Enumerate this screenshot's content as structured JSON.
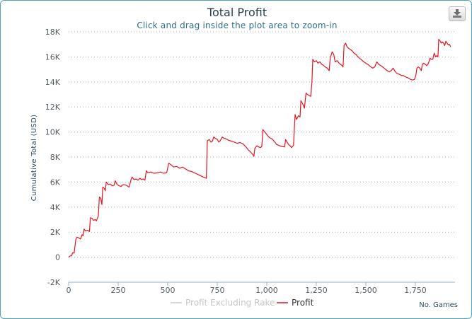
{
  "chart_data": {
    "type": "line",
    "title": "Total Profit",
    "subtitle": "Click and drag inside the plot area to zoom-in",
    "ylabel": "Cumulative Total (USD)",
    "xlabel": "No. Games",
    "xlim": [
      0,
      1950
    ],
    "ylim": [
      -2000,
      18000
    ],
    "x_ticks": [
      0,
      250,
      500,
      750,
      1000,
      1250,
      1500,
      1750
    ],
    "x_tick_labels": [
      "0",
      "250",
      "500",
      "750",
      "1,000",
      "1,250",
      "1,500",
      "1,750"
    ],
    "y_ticks": [
      -2000,
      0,
      2000,
      4000,
      6000,
      8000,
      10000,
      12000,
      14000,
      16000,
      18000
    ],
    "y_tick_labels": [
      "-2K",
      "0",
      "2K",
      "4K",
      "6K",
      "8K",
      "10K",
      "12K",
      "14K",
      "16K",
      "18K"
    ],
    "legend": [
      {
        "name": "Profit Excluding Rake",
        "color": "#cccccc",
        "visible": false
      },
      {
        "name": "Profit",
        "color": "#e8141e",
        "visible": true
      }
    ],
    "series": [
      {
        "name": "Profit",
        "color": "#e8141e",
        "points": [
          [
            0,
            0
          ],
          [
            8,
            100
          ],
          [
            15,
            120
          ],
          [
            20,
            350
          ],
          [
            28,
            330
          ],
          [
            32,
            900
          ],
          [
            36,
            1400
          ],
          [
            42,
            1600
          ],
          [
            50,
            1550
          ],
          [
            60,
            1450
          ],
          [
            68,
            1800
          ],
          [
            72,
            1700
          ],
          [
            78,
            2250
          ],
          [
            85,
            2100
          ],
          [
            95,
            2150
          ],
          [
            105,
            2050
          ],
          [
            110,
            3150
          ],
          [
            118,
            3100
          ],
          [
            125,
            2950
          ],
          [
            135,
            3000
          ],
          [
            140,
            2900
          ],
          [
            150,
            3300
          ],
          [
            155,
            4800
          ],
          [
            162,
            4700
          ],
          [
            168,
            4200
          ],
          [
            172,
            5600
          ],
          [
            180,
            5500
          ],
          [
            185,
            5300
          ],
          [
            190,
            6000
          ],
          [
            200,
            5800
          ],
          [
            210,
            5850
          ],
          [
            220,
            5700
          ],
          [
            230,
            5750
          ],
          [
            235,
            6100
          ],
          [
            245,
            5800
          ],
          [
            255,
            5700
          ],
          [
            265,
            5650
          ],
          [
            275,
            5800
          ],
          [
            290,
            5750
          ],
          [
            305,
            5600
          ],
          [
            315,
            6200
          ],
          [
            320,
            6400
          ],
          [
            330,
            6200
          ],
          [
            340,
            6250
          ],
          [
            350,
            6150
          ],
          [
            360,
            6300
          ],
          [
            368,
            6200
          ],
          [
            375,
            6250
          ],
          [
            385,
            6150
          ],
          [
            392,
            6900
          ],
          [
            400,
            6750
          ],
          [
            415,
            6800
          ],
          [
            430,
            6700
          ],
          [
            450,
            6750
          ],
          [
            465,
            6800
          ],
          [
            480,
            6700
          ],
          [
            495,
            6750
          ],
          [
            505,
            7500
          ],
          [
            515,
            7400
          ],
          [
            530,
            7200
          ],
          [
            545,
            7250
          ],
          [
            560,
            7100
          ],
          [
            575,
            7200
          ],
          [
            590,
            7050
          ],
          [
            605,
            6900
          ],
          [
            620,
            6850
          ],
          [
            640,
            6700
          ],
          [
            660,
            6550
          ],
          [
            680,
            6400
          ],
          [
            695,
            6300
          ],
          [
            700,
            9300
          ],
          [
            710,
            9400
          ],
          [
            718,
            9200
          ],
          [
            725,
            9250
          ],
          [
            732,
            9600
          ],
          [
            740,
            9500
          ],
          [
            750,
            9400
          ],
          [
            758,
            9200
          ],
          [
            765,
            9300
          ],
          [
            775,
            9600
          ],
          [
            785,
            9500
          ],
          [
            795,
            9450
          ],
          [
            805,
            9350
          ],
          [
            815,
            9300
          ],
          [
            825,
            9250
          ],
          [
            835,
            9200
          ],
          [
            850,
            9100
          ],
          [
            865,
            9150
          ],
          [
            880,
            9050
          ],
          [
            895,
            8800
          ],
          [
            905,
            8600
          ],
          [
            918,
            8400
          ],
          [
            930,
            8200
          ],
          [
            935,
            8050
          ],
          [
            940,
            8700
          ],
          [
            950,
            8900
          ],
          [
            960,
            8800
          ],
          [
            968,
            8750
          ],
          [
            975,
            8850
          ],
          [
            980,
            10200
          ],
          [
            990,
            10000
          ],
          [
            1000,
            9800
          ],
          [
            1010,
            9600
          ],
          [
            1020,
            9500
          ],
          [
            1030,
            9400
          ],
          [
            1040,
            9200
          ],
          [
            1050,
            9000
          ],
          [
            1065,
            8900
          ],
          [
            1075,
            8850
          ],
          [
            1090,
            8800
          ],
          [
            1095,
            9400
          ],
          [
            1102,
            9200
          ],
          [
            1110,
            9000
          ],
          [
            1118,
            8900
          ],
          [
            1125,
            8750
          ],
          [
            1135,
            8950
          ],
          [
            1143,
            11400
          ],
          [
            1150,
            11000
          ],
          [
            1160,
            11300
          ],
          [
            1168,
            11200
          ],
          [
            1172,
            12500
          ],
          [
            1180,
            12300
          ],
          [
            1190,
            11900
          ],
          [
            1198,
            13100
          ],
          [
            1205,
            13000
          ],
          [
            1215,
            12900
          ],
          [
            1222,
            12850
          ],
          [
            1228,
            14000
          ],
          [
            1232,
            15800
          ],
          [
            1240,
            15600
          ],
          [
            1250,
            15700
          ],
          [
            1258,
            15500
          ],
          [
            1268,
            15600
          ],
          [
            1278,
            15400
          ],
          [
            1288,
            15300
          ],
          [
            1295,
            15200
          ],
          [
            1305,
            15100
          ],
          [
            1315,
            14900
          ],
          [
            1320,
            15900
          ],
          [
            1330,
            16400
          ],
          [
            1338,
            16200
          ],
          [
            1345,
            15600
          ],
          [
            1355,
            15700
          ],
          [
            1365,
            15500
          ],
          [
            1372,
            15400
          ],
          [
            1380,
            15300
          ],
          [
            1385,
            15200
          ],
          [
            1390,
            16900
          ],
          [
            1398,
            17100
          ],
          [
            1405,
            16800
          ],
          [
            1412,
            16700
          ],
          [
            1420,
            16600
          ],
          [
            1430,
            16500
          ],
          [
            1440,
            16300
          ],
          [
            1450,
            16200
          ],
          [
            1460,
            16000
          ],
          [
            1468,
            15900
          ],
          [
            1475,
            15800
          ],
          [
            1490,
            15600
          ],
          [
            1500,
            15500
          ],
          [
            1510,
            15400
          ],
          [
            1518,
            15300
          ],
          [
            1525,
            15200
          ],
          [
            1535,
            15100
          ],
          [
            1545,
            15200
          ],
          [
            1555,
            15600
          ],
          [
            1565,
            15400
          ],
          [
            1575,
            15300
          ],
          [
            1585,
            15200
          ],
          [
            1592,
            15100
          ],
          [
            1600,
            15000
          ],
          [
            1608,
            14900
          ],
          [
            1618,
            14800
          ],
          [
            1628,
            14900
          ],
          [
            1638,
            15100
          ],
          [
            1645,
            14900
          ],
          [
            1655,
            14700
          ],
          [
            1662,
            14650
          ],
          [
            1670,
            14600
          ],
          [
            1680,
            14500
          ],
          [
            1690,
            14500
          ],
          [
            1700,
            14400
          ],
          [
            1708,
            14350
          ],
          [
            1716,
            14300
          ],
          [
            1725,
            14200
          ],
          [
            1735,
            14150
          ],
          [
            1745,
            14200
          ],
          [
            1752,
            14500
          ],
          [
            1758,
            15100
          ],
          [
            1765,
            15200
          ],
          [
            1772,
            15100
          ],
          [
            1780,
            14900
          ],
          [
            1785,
            15400
          ],
          [
            1792,
            15500
          ],
          [
            1800,
            15400
          ],
          [
            1808,
            15300
          ],
          [
            1816,
            15500
          ],
          [
            1824,
            15900
          ],
          [
            1830,
            15800
          ],
          [
            1838,
            15800
          ],
          [
            1845,
            16300
          ],
          [
            1852,
            16000
          ],
          [
            1858,
            16100
          ],
          [
            1864,
            16000
          ],
          [
            1868,
            17400
          ],
          [
            1874,
            17300
          ],
          [
            1880,
            17100
          ],
          [
            1886,
            17200
          ],
          [
            1892,
            17100
          ],
          [
            1898,
            16900
          ],
          [
            1904,
            17250
          ],
          [
            1910,
            17100
          ],
          [
            1916,
            16950
          ],
          [
            1922,
            17000
          ],
          [
            1928,
            16800
          ]
        ]
      }
    ]
  },
  "toolbar": {
    "export_icon": "download-icon"
  }
}
